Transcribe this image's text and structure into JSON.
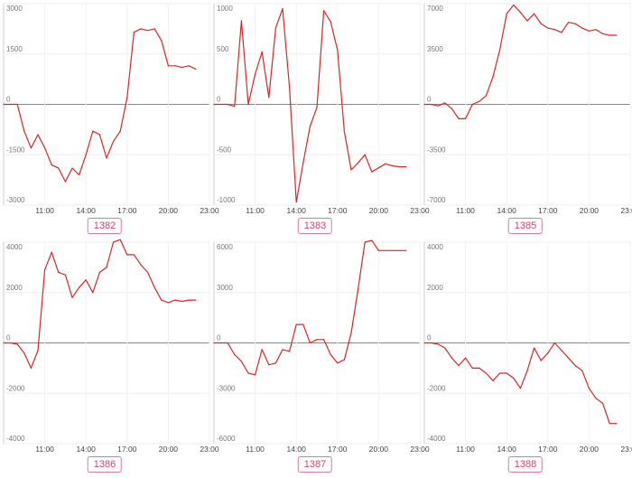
{
  "chart_data": [
    {
      "type": "line",
      "id_label": "1382",
      "x_ticks": [
        "11:00",
        "14:00",
        "17:00",
        "20:00",
        "23:00"
      ],
      "xlim": [
        "08:00",
        "23:00"
      ],
      "ylim": [
        -3000,
        3000
      ],
      "y_ticks": [
        3000,
        1500,
        0,
        -1500,
        -3000
      ],
      "line_color": "#d62728",
      "series": [
        {
          "x": [
            "08:00",
            "08:30",
            "09:00",
            "09:30",
            "10:00",
            "10:30",
            "11:00",
            "11:30",
            "12:00",
            "12:30",
            "13:00",
            "13:30",
            "14:00",
            "14:30",
            "15:00",
            "15:30",
            "16:00",
            "16:30",
            "17:00",
            "17:30",
            "18:00",
            "18:30",
            "19:00",
            "19:30",
            "20:00",
            "20:30",
            "21:00",
            "21:30",
            "22:00"
          ],
          "values": [
            0,
            0,
            0,
            -800,
            -1300,
            -900,
            -1300,
            -1800,
            -1900,
            -2300,
            -1900,
            -2100,
            -1500,
            -800,
            -900,
            -1600,
            -1100,
            -800,
            200,
            2150,
            2250,
            2200,
            2250,
            1900,
            1150,
            1150,
            1100,
            1150,
            1050
          ]
        }
      ]
    },
    {
      "type": "line",
      "id_label": "1383",
      "x_ticks": [
        "11:00",
        "14:00",
        "17:00",
        "20:00",
        "23:00"
      ],
      "xlim": [
        "08:00",
        "23:00"
      ],
      "ylim": [
        -1000,
        1000
      ],
      "y_ticks": [
        1000,
        500,
        0,
        -500,
        -1000
      ],
      "line_color": "#d62728",
      "series": [
        {
          "x": [
            "08:00",
            "08:30",
            "09:00",
            "09:30",
            "10:00",
            "10:30",
            "11:00",
            "11:30",
            "12:00",
            "12:30",
            "13:00",
            "13:30",
            "14:00",
            "14:30",
            "15:00",
            "15:30",
            "16:00",
            "16:30",
            "17:00",
            "17:30",
            "18:00",
            "18:30",
            "19:00",
            "19:30",
            "20:00",
            "20:30",
            "21:00",
            "21:30",
            "22:00"
          ],
          "values": [
            0,
            0,
            0,
            -20,
            830,
            0,
            300,
            520,
            70,
            760,
            950,
            170,
            -970,
            -580,
            -220,
            -30,
            930,
            820,
            540,
            -270,
            -650,
            -580,
            -500,
            -670,
            -630,
            -590,
            -610,
            -620,
            -620
          ]
        }
      ]
    },
    {
      "type": "line",
      "id_label": "1385",
      "x_ticks": [
        "11:00",
        "14:00",
        "17:00",
        "20:00",
        "23:00"
      ],
      "xlim": [
        "08:00",
        "23:00"
      ],
      "ylim": [
        -7000,
        7000
      ],
      "y_ticks": [
        7000,
        3500,
        0,
        -3500,
        -7000
      ],
      "line_color": "#d62728",
      "series": [
        {
          "x": [
            "08:00",
            "08:30",
            "09:00",
            "09:30",
            "10:00",
            "10:30",
            "11:00",
            "11:30",
            "12:00",
            "12:30",
            "13:00",
            "13:30",
            "14:00",
            "14:30",
            "15:00",
            "15:30",
            "16:00",
            "16:30",
            "17:00",
            "17:30",
            "18:00",
            "18:30",
            "19:00",
            "19:30",
            "20:00",
            "20:30",
            "21:00",
            "21:30",
            "22:00"
          ],
          "values": [
            0,
            0,
            -100,
            100,
            -300,
            -1000,
            -1000,
            0,
            200,
            600,
            1900,
            3800,
            6300,
            6900,
            6400,
            5800,
            6300,
            5600,
            5300,
            5200,
            5000,
            5700,
            5600,
            5300,
            5100,
            5200,
            4900,
            4800,
            4800
          ]
        }
      ]
    },
    {
      "type": "line",
      "id_label": "1386",
      "x_ticks": [
        "11:00",
        "14:00",
        "17:00",
        "20:00",
        "23:00"
      ],
      "xlim": [
        "08:00",
        "23:00"
      ],
      "ylim": [
        -4000,
        4000
      ],
      "y_ticks": [
        4000,
        2000,
        0,
        -2000,
        -4000
      ],
      "line_color": "#d62728",
      "series": [
        {
          "x": [
            "08:00",
            "08:30",
            "09:00",
            "09:30",
            "10:00",
            "10:30",
            "11:00",
            "11:30",
            "12:00",
            "12:30",
            "13:00",
            "13:30",
            "14:00",
            "14:30",
            "15:00",
            "15:30",
            "16:00",
            "16:30",
            "17:00",
            "17:30",
            "18:00",
            "18:30",
            "19:00",
            "19:30",
            "20:00",
            "20:30",
            "21:00",
            "21:30",
            "22:00"
          ],
          "values": [
            0,
            0,
            -50,
            -400,
            -1000,
            -300,
            2900,
            3600,
            2800,
            2700,
            1800,
            2200,
            2500,
            2000,
            2800,
            3000,
            4000,
            4100,
            3500,
            3500,
            3100,
            2800,
            2200,
            1700,
            1600,
            1700,
            1650,
            1700,
            1700
          ]
        }
      ]
    },
    {
      "type": "line",
      "id_label": "1387",
      "x_ticks": [
        "11:00",
        "14:00",
        "17:00",
        "20:00",
        "23:00"
      ],
      "xlim": [
        "08:00",
        "23:00"
      ],
      "ylim": [
        -6000,
        6000
      ],
      "y_ticks": [
        6000,
        3000,
        0,
        -3000,
        -6000
      ],
      "line_color": "#d62728",
      "series": [
        {
          "x": [
            "08:00",
            "08:30",
            "09:00",
            "09:30",
            "10:00",
            "10:30",
            "11:00",
            "11:30",
            "12:00",
            "12:30",
            "13:00",
            "13:30",
            "14:00",
            "14:30",
            "15:00",
            "15:30",
            "16:00",
            "16:30",
            "17:00",
            "17:30",
            "18:00",
            "18:30",
            "19:00",
            "19:30",
            "20:00",
            "20:30",
            "21:00",
            "21:30",
            "22:00"
          ],
          "values": [
            0,
            0,
            0,
            -700,
            -1100,
            -1800,
            -1900,
            -400,
            -1300,
            -1200,
            -400,
            -500,
            1100,
            1100,
            0,
            200,
            200,
            -700,
            -1200,
            -1000,
            600,
            3200,
            6000,
            6100,
            5500,
            5500,
            5500,
            5500,
            5500
          ]
        }
      ]
    },
    {
      "type": "line",
      "id_label": "1388",
      "x_ticks": [
        "11:00",
        "14:00",
        "17:00",
        "20:00",
        "23:00"
      ],
      "xlim": [
        "08:00",
        "23:00"
      ],
      "ylim": [
        -4000,
        4000
      ],
      "y_ticks": [
        4000,
        2000,
        0,
        -2000,
        -4000
      ],
      "line_color": "#d62728",
      "series": [
        {
          "x": [
            "08:00",
            "08:30",
            "09:00",
            "09:30",
            "10:00",
            "10:30",
            "11:00",
            "11:30",
            "12:00",
            "12:30",
            "13:00",
            "13:30",
            "14:00",
            "14:30",
            "15:00",
            "15:30",
            "16:00",
            "16:30",
            "17:00",
            "17:30",
            "18:00",
            "18:30",
            "19:00",
            "19:30",
            "20:00",
            "20:30",
            "21:00",
            "21:30",
            "22:00"
          ],
          "values": [
            0,
            0,
            -50,
            -200,
            -600,
            -900,
            -600,
            -1000,
            -1000,
            -1200,
            -1500,
            -1200,
            -1200,
            -1400,
            -1800,
            -1100,
            -200,
            -700,
            -400,
            0,
            -300,
            -600,
            -900,
            -1100,
            -1800,
            -2200,
            -2400,
            -3200,
            -3200
          ]
        }
      ]
    }
  ]
}
